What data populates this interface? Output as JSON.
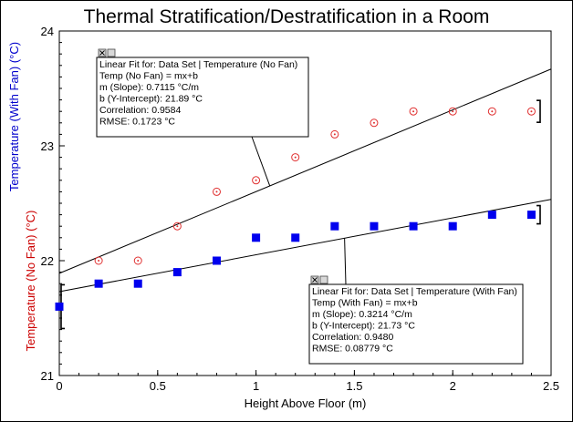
{
  "chart_data": {
    "type": "scatter",
    "title": "Thermal Stratification/Destratification in a Room",
    "xlabel": "Height Above Floor (m)",
    "ylabel_lines": [
      {
        "text": "Temperature (With Fan) (°C)",
        "color": "#0000CC"
      },
      {
        "text": "Temperature (No Fan) (°C)",
        "color": "#CC0000"
      }
    ],
    "xlim": [
      0,
      2.5
    ],
    "ylim": [
      21,
      24
    ],
    "xticks": [
      "0",
      "0.5",
      "1",
      "1.5",
      "2",
      "2.5"
    ],
    "yticks": [
      "21",
      "22",
      "23",
      "24"
    ],
    "series": [
      {
        "name": "Temperature (No Fan)",
        "marker": "circle-dot",
        "color": "#E03030",
        "x": [
          0.2,
          0.4,
          0.6,
          0.8,
          1.0,
          1.2,
          1.4,
          1.6,
          1.8,
          2.0,
          2.2,
          2.4
        ],
        "y": [
          22.0,
          22.0,
          22.3,
          22.6,
          22.7,
          22.9,
          23.1,
          23.2,
          23.3,
          23.3,
          23.3,
          23.3
        ]
      },
      {
        "name": "Temperature (With Fan)",
        "marker": "square",
        "color": "#0000EE",
        "x": [
          0,
          0.2,
          0.4,
          0.6,
          0.8,
          1.0,
          1.2,
          1.4,
          1.6,
          1.8,
          2.0,
          2.2,
          2.4
        ],
        "y": [
          21.6,
          21.8,
          21.8,
          21.9,
          22.0,
          22.2,
          22.2,
          22.3,
          22.3,
          22.3,
          22.3,
          22.4,
          22.4
        ]
      }
    ],
    "fits": [
      {
        "slope": 0.7115,
        "intercept": 21.89,
        "x_range": [
          0,
          2.5
        ],
        "lines": [
          "Linear Fit for: Data Set | Temperature (No Fan)",
          "Temp (No Fan) = mx+b",
          "m (Slope): 0.7115 °C/m",
          "b (Y-Intercept): 21.89 °C",
          "Correlation: 0.9584",
          "RMSE: 0.1723 °C"
        ]
      },
      {
        "slope": 0.3214,
        "intercept": 21.73,
        "x_range": [
          0,
          2.5
        ],
        "lines": [
          "Linear Fit for: Data Set | Temperature (With Fan)",
          "Temp (With Fan) = mx+b",
          "m (Slope): 0.3214 °C/m",
          "b (Y-Intercept): 21.73 °C",
          "Correlation: 0.9480",
          "RMSE: 0.08779 °C"
        ]
      }
    ],
    "grid": false
  }
}
